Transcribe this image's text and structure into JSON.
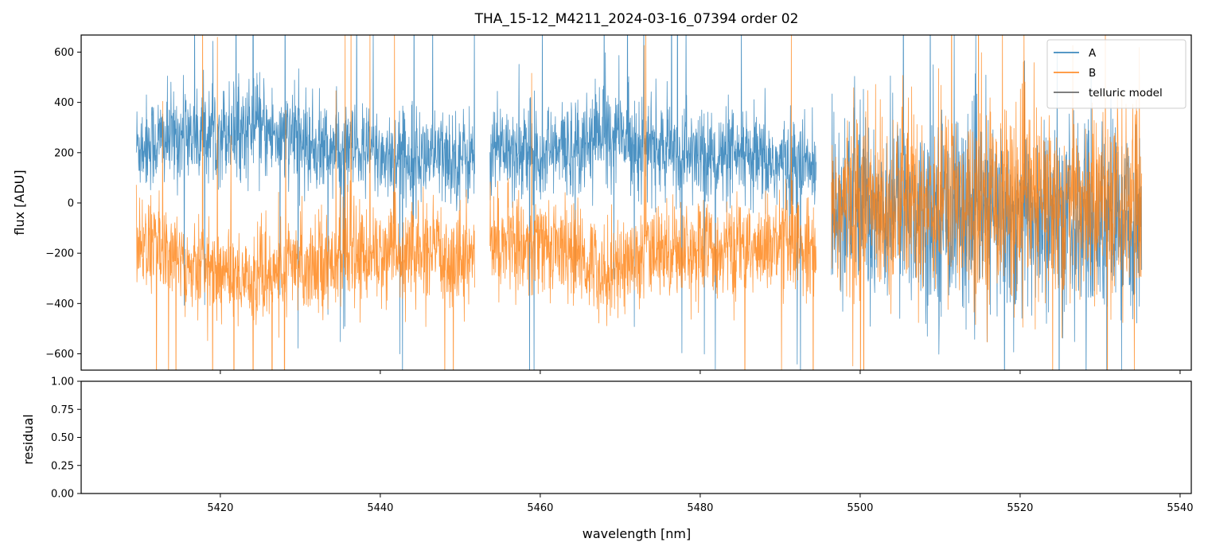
{
  "title": "THA_15-12_M4211_2024-03-16_07394  order 02",
  "chart_data": [
    {
      "type": "line",
      "panel": "top",
      "xlabel": "",
      "ylabel": "flux [ADU]",
      "xlim": [
        5402.6,
        5541.4
      ],
      "ylim": [
        -665,
        668
      ],
      "x_ticks": [
        5420,
        5440,
        5460,
        5480,
        5500,
        5520,
        5540
      ],
      "y_ticks": [
        -600,
        -400,
        -200,
        0,
        200,
        400,
        600
      ],
      "y_tick_labels": [
        "−600",
        "−400",
        "−200",
        "0",
        "200",
        "400",
        "600"
      ],
      "legend": {
        "position": "upper right",
        "entries": [
          {
            "label": "A",
            "color": "#1f77b4"
          },
          {
            "label": "B",
            "color": "#ff7f0e"
          },
          {
            "label": "telluric model",
            "color": "#555555"
          }
        ]
      },
      "series": [
        {
          "name": "A",
          "color": "#1f77b4",
          "x_range": [
            5409.5,
            5535.2
          ],
          "noise_level": "high",
          "baseline": [
            [
              5409.5,
              230
            ],
            [
              5416,
              270
            ],
            [
              5424,
              300
            ],
            [
              5432,
              220
            ],
            [
              5440,
              190
            ],
            [
              5451.5,
              180
            ],
            [
              5454,
              230
            ],
            [
              5462,
              200
            ],
            [
              5468,
              290
            ],
            [
              5476,
              200
            ],
            [
              5484,
              170
            ],
            [
              5494.5,
              140
            ],
            [
              5496.5,
              20
            ],
            [
              5505,
              -20
            ],
            [
              5515,
              -40
            ],
            [
              5525,
              -80
            ],
            [
              5535.2,
              -100
            ]
          ],
          "gaps": [
            [
              5451.8,
              5453.7
            ],
            [
              5494.5,
              5496.4
            ]
          ]
        },
        {
          "name": "B",
          "color": "#ff7f0e",
          "x_range": [
            5409.5,
            5535.2
          ],
          "noise_level": "high",
          "baseline": [
            [
              5409.5,
              -150
            ],
            [
              5416,
              -230
            ],
            [
              5424,
              -300
            ],
            [
              5432,
              -230
            ],
            [
              5440,
              -200
            ],
            [
              5451.5,
              -210
            ],
            [
              5454,
              -160
            ],
            [
              5462,
              -170
            ],
            [
              5468,
              -270
            ],
            [
              5476,
              -180
            ],
            [
              5484,
              -190
            ],
            [
              5494.5,
              -170
            ],
            [
              5496.5,
              -30
            ],
            [
              5505,
              10
            ],
            [
              5515,
              20
            ],
            [
              5525,
              0
            ],
            [
              5535.2,
              -10
            ]
          ],
          "gaps": [
            [
              5451.8,
              5453.7
            ],
            [
              5494.5,
              5496.4
            ]
          ]
        },
        {
          "name": "telluric model",
          "color": "#555555",
          "values": []
        }
      ]
    },
    {
      "type": "line",
      "panel": "bottom",
      "xlabel": "wavelength [nm]",
      "ylabel": "residual",
      "xlim": [
        5402.6,
        5541.4
      ],
      "ylim": [
        0,
        1
      ],
      "x_ticks": [
        5420,
        5440,
        5460,
        5480,
        5500,
        5520,
        5540
      ],
      "x_tick_labels": [
        "5420",
        "5440",
        "5460",
        "5480",
        "5500",
        "5520",
        "5540"
      ],
      "y_ticks": [
        0,
        0.25,
        0.5,
        0.75,
        1.0
      ],
      "y_tick_labels": [
        "0.00",
        "0.25",
        "0.50",
        "0.75",
        "1.00"
      ],
      "series": []
    }
  ]
}
